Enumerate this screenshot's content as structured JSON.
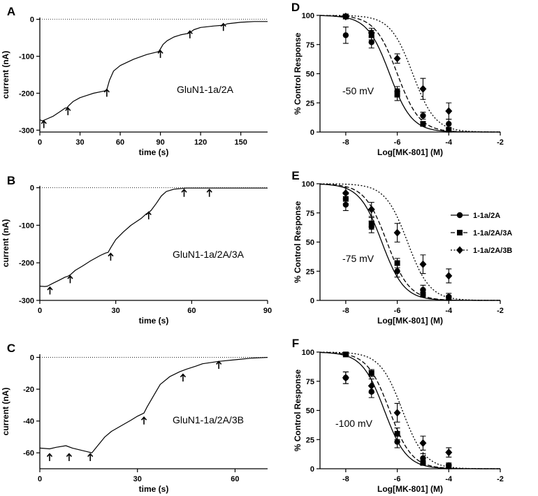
{
  "chart_data": [
    {
      "panel": "A",
      "type": "line",
      "xlabel": "time (s)",
      "ylabel": "current (nA)",
      "xlim": [
        0,
        170
      ],
      "ylim": [
        -305,
        5
      ],
      "xticks": [
        "0",
        "30",
        "60",
        "90",
        "120",
        "150"
      ],
      "yticks": [
        "0",
        "-100",
        "-200",
        "-300"
      ],
      "xtick_values": [
        0,
        30,
        60,
        90,
        120,
        150
      ],
      "ytick_values": [
        0,
        -100,
        -200,
        -300
      ],
      "annotation": "GluN1-1a/2A",
      "x": [
        0,
        2,
        5,
        10,
        15,
        19,
        20,
        22,
        25,
        30,
        40,
        48,
        49,
        50,
        52,
        55,
        60,
        70,
        80,
        88,
        89,
        90,
        92,
        95,
        100,
        105,
        111,
        112,
        115,
        120,
        130,
        137,
        138,
        140,
        150,
        160,
        170
      ],
      "y": [
        -272,
        -275,
        -270,
        -262,
        -250,
        -240,
        -240,
        -232,
        -222,
        -212,
        -200,
        -194,
        -193,
        -190,
        -165,
        -140,
        -125,
        -108,
        -95,
        -88,
        -86,
        -80,
        -68,
        -58,
        -48,
        -42,
        -38,
        -36,
        -28,
        -22,
        -18,
        -16,
        -15,
        -12,
        -8,
        -6,
        -6
      ],
      "arrows": [
        {
          "x": 3,
          "y": -285
        },
        {
          "x": 21,
          "y": -250
        },
        {
          "x": 50,
          "y": -200
        },
        {
          "x": 90,
          "y": -95
        },
        {
          "x": 112,
          "y": -42
        },
        {
          "x": 137,
          "y": -22
        }
      ]
    },
    {
      "panel": "B",
      "type": "line",
      "xlabel": "time (s)",
      "ylabel": "current (nA)",
      "xlim": [
        0,
        90
      ],
      "ylim": [
        -300,
        5
      ],
      "xticks": [
        "0",
        "30",
        "60",
        "90"
      ],
      "yticks": [
        "0",
        "-100",
        "-200",
        "-300"
      ],
      "xtick_values": [
        0,
        30,
        60,
        90
      ],
      "ytick_values": [
        0,
        -100,
        -200,
        -300
      ],
      "annotation": "GluN1-1a/2A/3A",
      "x": [
        0,
        2,
        3,
        5,
        8,
        10,
        11,
        12,
        14,
        17,
        20,
        24,
        26,
        27,
        28,
        30,
        33,
        36,
        40,
        42,
        43,
        44,
        46,
        48,
        50,
        53,
        56,
        58,
        62,
        66,
        70,
        80,
        90
      ],
      "y": [
        -262,
        -263,
        -262,
        -255,
        -245,
        -238,
        -236,
        -232,
        -220,
        -208,
        -195,
        -180,
        -174,
        -172,
        -160,
        -138,
        -118,
        -100,
        -82,
        -70,
        -66,
        -60,
        -42,
        -22,
        -10,
        -4,
        -2,
        -1,
        -1,
        -1,
        -1,
        -1,
        -1
      ],
      "arrows": [
        {
          "x": 4,
          "y": -275
        },
        {
          "x": 12,
          "y": -245
        },
        {
          "x": 28,
          "y": -185
        },
        {
          "x": 43,
          "y": -75
        },
        {
          "x": 57,
          "y": -15
        },
        {
          "x": 67,
          "y": -15
        }
      ]
    },
    {
      "panel": "C",
      "type": "line",
      "xlabel": "time (s)",
      "ylabel": "current (nA)",
      "xlim": [
        0,
        70
      ],
      "ylim": [
        -70,
        2
      ],
      "xticks": [
        "0",
        "30",
        "60"
      ],
      "yticks": [
        "0",
        "-20",
        "-40",
        "-60"
      ],
      "xtick_values": [
        0,
        30,
        60
      ],
      "ytick_values": [
        0,
        -20,
        -40,
        -60
      ],
      "annotation": "GluN1-1a/2A/3B",
      "x": [
        0,
        3,
        5,
        8,
        10,
        13,
        15,
        16,
        18,
        20,
        22,
        25,
        28,
        30,
        32,
        33,
        35,
        37,
        40,
        43,
        45,
        48,
        50,
        55,
        60,
        65,
        70
      ],
      "y": [
        -57,
        -57.5,
        -56.5,
        -55.5,
        -57,
        -58.5,
        -59.5,
        -60,
        -55,
        -50,
        -46.5,
        -43,
        -39.5,
        -37,
        -35,
        -31,
        -24,
        -17,
        -12,
        -9,
        -7.5,
        -5.5,
        -4,
        -2.5,
        -1.5,
        -0.5,
        0
      ],
      "arrows": [
        {
          "x": 3,
          "y": -63
        },
        {
          "x": 9,
          "y": -63
        },
        {
          "x": 15.5,
          "y": -63
        },
        {
          "x": 32,
          "y": -40
        },
        {
          "x": 44,
          "y": -13
        },
        {
          "x": 55,
          "y": -5
        }
      ]
    },
    {
      "panel": "D",
      "type": "scatter",
      "xlabel": "Log[MK-801] (M)",
      "ylabel": "% Control Response",
      "xlim": [
        -9,
        -2
      ],
      "ylim": [
        0,
        100
      ],
      "xticks": [
        "-8",
        "-6",
        "-4",
        "-2"
      ],
      "yticks": [
        "0",
        "25",
        "50",
        "75",
        "100"
      ],
      "xtick_values": [
        -8,
        -6,
        -4,
        -2
      ],
      "ytick_values": [
        0,
        25,
        50,
        75,
        100
      ],
      "annotation": "-50 mV",
      "series": [
        {
          "marker": "circle",
          "line": "solid",
          "ic50": -6.3,
          "top": 100,
          "x": [
            -8,
            -7,
            -6,
            -5,
            -4
          ],
          "y": [
            83,
            77,
            35,
            14,
            7
          ],
          "err": [
            7,
            5,
            4,
            3,
            4
          ]
        },
        {
          "marker": "square",
          "line": "dash",
          "ic50": -6.0,
          "top": 100,
          "x": [
            -8,
            -7,
            -6,
            -5,
            -4
          ],
          "y": [
            99,
            83,
            32,
            7,
            2
          ],
          "err": [
            2,
            4,
            5,
            2,
            1
          ]
        },
        {
          "marker": "diamond",
          "line": "dot",
          "ic50": -5.4,
          "top": 100,
          "x": [
            -8,
            -7,
            -6,
            -5,
            -4
          ],
          "y": [
            99,
            85,
            63,
            37,
            18
          ],
          "err": [
            2,
            4,
            4,
            9,
            7
          ]
        }
      ]
    },
    {
      "panel": "E",
      "type": "scatter",
      "xlabel": "Log[MK-801] (M)",
      "ylabel": "% Control Response",
      "xlim": [
        -9,
        -2
      ],
      "ylim": [
        0,
        100
      ],
      "xticks": [
        "-8",
        "-6",
        "-4",
        "-2"
      ],
      "yticks": [
        "0",
        "25",
        "50",
        "75",
        "100"
      ],
      "xtick_values": [
        -8,
        -6,
        -4,
        -2
      ],
      "ytick_values": [
        0,
        25,
        50,
        75,
        100
      ],
      "annotation": "-75 mV",
      "legend": [
        "1-1a/2A",
        "1-1a/2A/3A",
        "1-1a/2A/3B"
      ],
      "series": [
        {
          "name": "1-1a/2A",
          "marker": "circle",
          "line": "solid",
          "ic50": -6.6,
          "top": 100,
          "x": [
            -8,
            -7,
            -6,
            -5,
            -4
          ],
          "y": [
            82,
            63,
            25,
            9,
            3
          ],
          "err": [
            5,
            5,
            5,
            4,
            3
          ]
        },
        {
          "name": "1-1a/2A/3A",
          "marker": "square",
          "line": "dash",
          "ic50": -6.4,
          "top": 100,
          "x": [
            -8,
            -7,
            -6,
            -5,
            -4
          ],
          "y": [
            87,
            66,
            32,
            5,
            2
          ],
          "err": [
            4,
            5,
            4,
            2,
            1
          ]
        },
        {
          "name": "1-1a/2A/3B",
          "marker": "diamond",
          "line": "dot",
          "ic50": -5.6,
          "top": 100,
          "x": [
            -8,
            -7,
            -6,
            -5,
            -4
          ],
          "y": [
            92,
            78,
            58,
            31,
            21
          ],
          "err": [
            5,
            6,
            8,
            8,
            6
          ]
        }
      ]
    },
    {
      "panel": "F",
      "type": "scatter",
      "xlabel": "Log[MK-801] (M)",
      "ylabel": "% Control Response",
      "xlim": [
        -9,
        -2
      ],
      "ylim": [
        0,
        100
      ],
      "xticks": [
        "-8",
        "-6",
        "-4",
        "-2"
      ],
      "yticks": [
        "0",
        "25",
        "50",
        "75",
        "100"
      ],
      "xtick_values": [
        -8,
        -6,
        -4,
        -2
      ],
      "ytick_values": [
        0,
        25,
        50,
        75,
        100
      ],
      "annotation": "-100 mV",
      "series": [
        {
          "marker": "circle",
          "line": "solid",
          "ic50": -6.5,
          "top": 100,
          "x": [
            -8,
            -7,
            -6,
            -5,
            -4
          ],
          "y": [
            78,
            66,
            23,
            9,
            3
          ],
          "err": [
            5,
            5,
            5,
            4,
            2
          ]
        },
        {
          "marker": "square",
          "line": "dash",
          "ic50": -6.3,
          "top": 100,
          "x": [
            -8,
            -7,
            -6,
            -5,
            -4
          ],
          "y": [
            98,
            82,
            30,
            5,
            2
          ],
          "err": [
            2,
            3,
            5,
            2,
            1
          ]
        },
        {
          "marker": "diamond",
          "line": "dot",
          "ic50": -5.8,
          "top": 100,
          "x": [
            -8,
            -7,
            -6,
            -5,
            -4
          ],
          "y": [
            78,
            71,
            48,
            22,
            14
          ],
          "err": [
            5,
            6,
            8,
            6,
            4
          ]
        }
      ]
    }
  ]
}
